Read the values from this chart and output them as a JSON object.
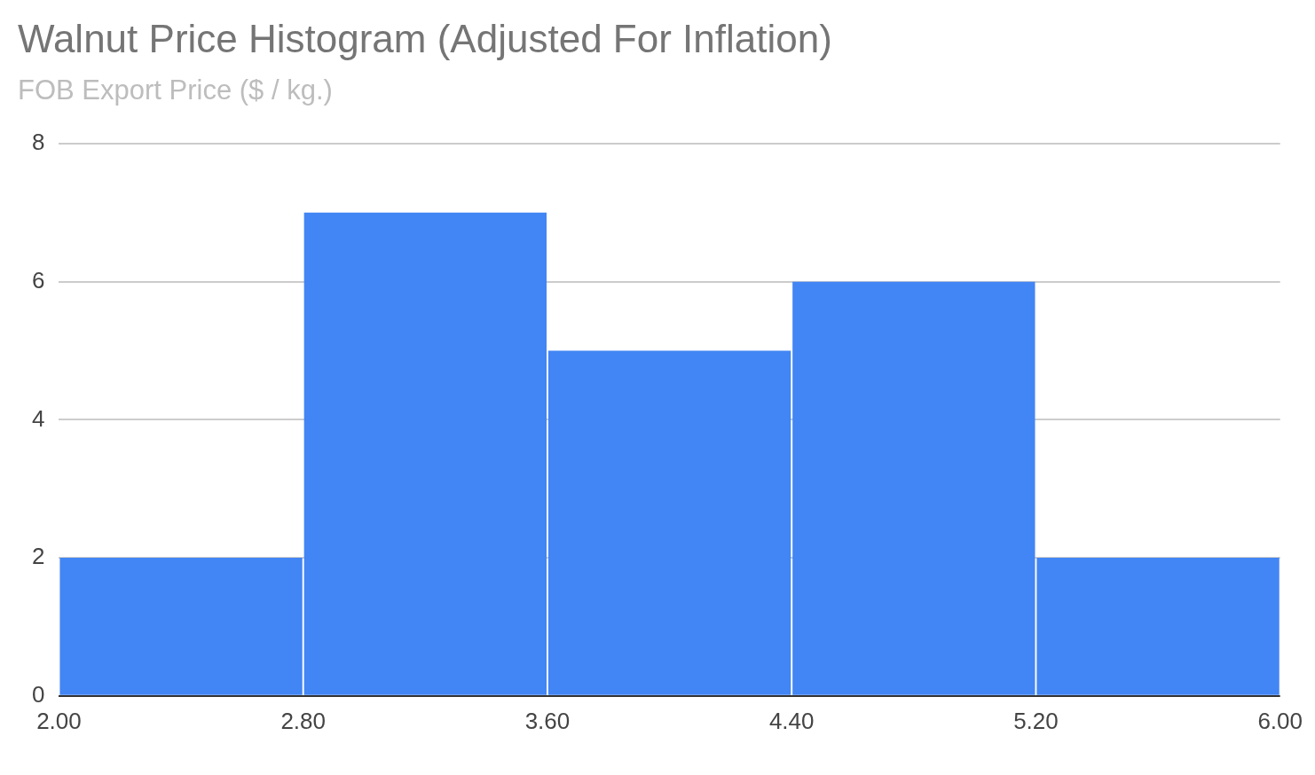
{
  "chart_data": {
    "type": "histogram",
    "title": "Walnut Price Histogram (Adjusted For Inflation)",
    "subtitle": "FOB Export Price ($ / kg.)",
    "bins": [
      2,
      2.8,
      3.6,
      4.4,
      5.2,
      6
    ],
    "values": [
      2,
      7,
      5,
      6,
      2
    ],
    "color": "#4285f4",
    "xlim": [
      2,
      6
    ],
    "xticks": [
      {
        "value": 2,
        "label": "2.00"
      },
      {
        "value": 2.8,
        "label": "2.80"
      },
      {
        "value": 3.6,
        "label": "3.60"
      },
      {
        "value": 4.4,
        "label": "4.40"
      },
      {
        "value": 5.2,
        "label": "5.20"
      },
      {
        "value": 6,
        "label": "6.00"
      }
    ],
    "ylim": [
      0,
      8
    ],
    "yticks": [
      0,
      2,
      4,
      6,
      8
    ],
    "grid": "y",
    "legend": false
  }
}
